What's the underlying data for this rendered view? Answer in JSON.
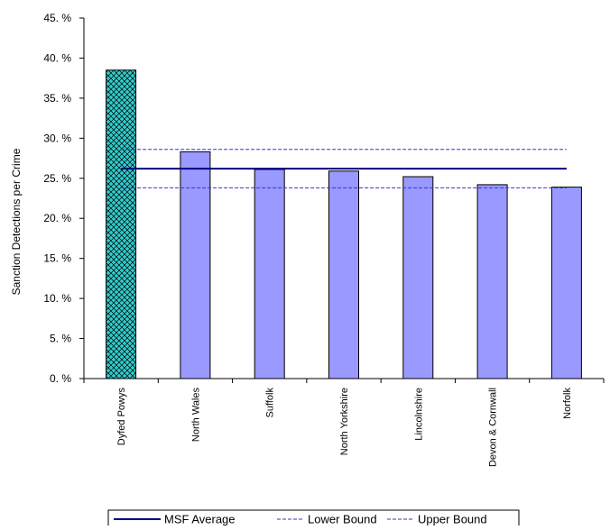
{
  "chart_data": {
    "type": "bar",
    "title": "",
    "xlabel": "",
    "ylabel": "Sanction Detections per Crime",
    "ylim": [
      0,
      45
    ],
    "y_ticks": [
      0,
      5,
      10,
      15,
      20,
      25,
      30,
      35,
      40,
      45
    ],
    "y_tick_labels": [
      "0. %",
      "5. %",
      "10. %",
      "15. %",
      "20. %",
      "25. %",
      "30. %",
      "35. %",
      "40. %",
      "45. %"
    ],
    "categories": [
      "Dyfed Powys",
      "North Wales",
      "Suffolk",
      "North Yorkshire",
      "Lincolnshire",
      "Devon & Cornwall",
      "Norfolk"
    ],
    "values": [
      38.5,
      28.3,
      26.1,
      25.9,
      25.2,
      24.2,
      23.9
    ],
    "highlight_index": 0,
    "bar_color": "#9999ff",
    "highlight_color": "#33cccc",
    "reference_lines": [
      {
        "name": "MSF Average",
        "value": 26.2,
        "style": "solid",
        "color": "#000080"
      },
      {
        "name": "Lower Bound",
        "value": 23.8,
        "style": "dashed",
        "color": "#3333cc"
      },
      {
        "name": "Upper Bound",
        "value": 28.6,
        "style": "dashed",
        "color": "#3333cc"
      }
    ],
    "grid": false,
    "legend_position": "bottom"
  }
}
